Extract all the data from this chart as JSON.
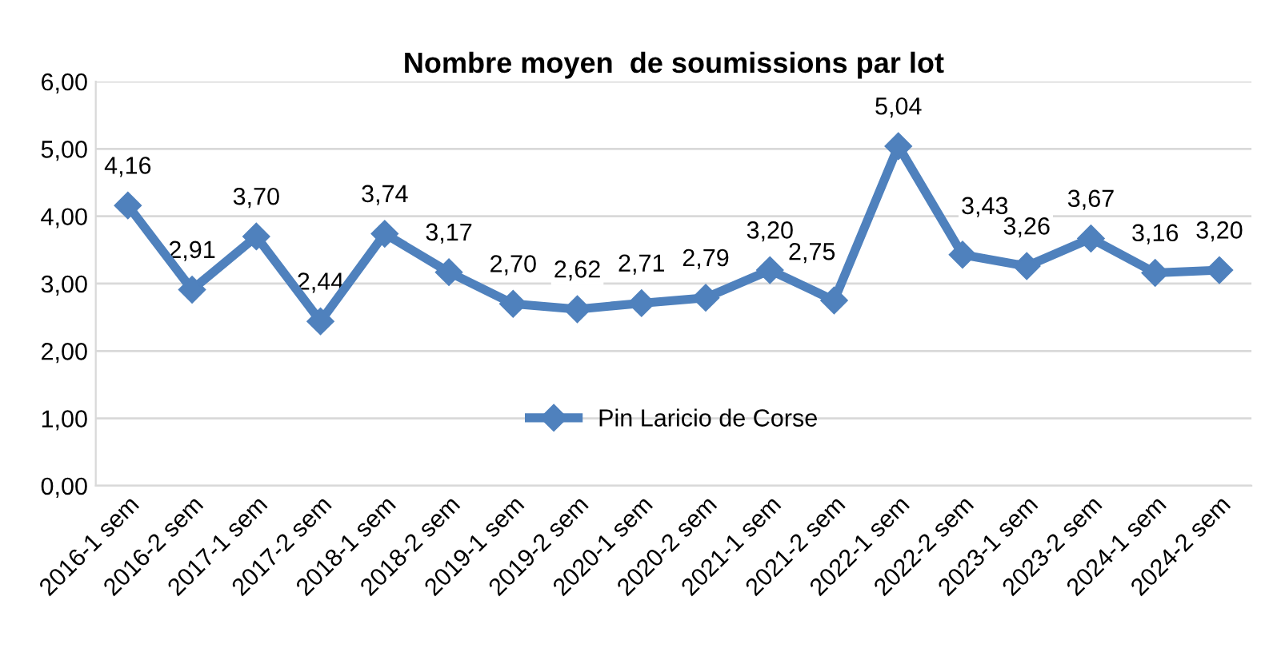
{
  "chart_data": {
    "type": "line",
    "title": "Nombre moyen  de soumissions par lot",
    "categories": [
      "2016-1 sem",
      "2016-2 sem",
      "2017-1 sem",
      "2017-2 sem",
      "2018-1 sem",
      "2018-2 sem",
      "2019-1 sem",
      "2019-2 sem",
      "2020-1 sem",
      "2020-2 sem",
      "2021-1 sem",
      "2021-2 sem",
      "2022-1 sem",
      "2022-2 sem",
      "2023-1 sem",
      "2023-2 sem",
      "2024-1 sem",
      "2024-2 sem"
    ],
    "series": [
      {
        "name": "Pin Laricio de Corse",
        "color": "#4f81bd",
        "values": [
          4.16,
          2.91,
          3.7,
          2.44,
          3.74,
          3.17,
          2.7,
          2.62,
          2.71,
          2.79,
          3.2,
          2.75,
          5.04,
          3.43,
          3.26,
          3.67,
          3.16,
          3.2
        ],
        "value_labels": [
          "4,16",
          "2,91",
          "3,70",
          "2,44",
          "3,74",
          "3,17",
          "2,70",
          "2,62",
          "2,71",
          "2,79",
          "3,20",
          "2,75",
          "5,04",
          "3,43",
          "3,26",
          "3,67",
          "3,16",
          "3,20"
        ]
      }
    ],
    "ylim": [
      0,
      6
    ],
    "yticks": [
      {
        "value": 0,
        "label": "0,00"
      },
      {
        "value": 1,
        "label": "1,00"
      },
      {
        "value": 2,
        "label": "2,00"
      },
      {
        "value": 3,
        "label": "3,00"
      },
      {
        "value": 4,
        "label": "4,00"
      },
      {
        "value": 5,
        "label": "5,00"
      },
      {
        "value": 6,
        "label": "6,00"
      }
    ],
    "grid": "y",
    "legend": "bottom",
    "marker": "diamond",
    "line_style": "solid"
  }
}
